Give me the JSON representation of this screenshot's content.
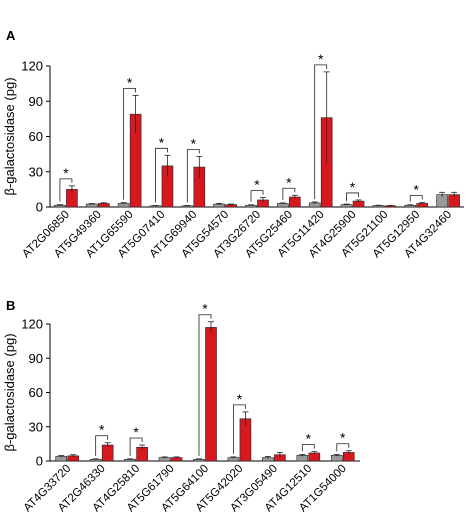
{
  "colors": {
    "control": "#9a9a9a",
    "treatment": "#d7191f",
    "axis": "#000000"
  },
  "chart_data": [
    {
      "panel_label": "A",
      "type": "bar",
      "ylabel": "β-galactosidase (pg)",
      "ylim": [
        0,
        120
      ],
      "yticks": [
        0,
        30,
        60,
        90,
        120
      ],
      "categories": [
        "AT2G06850",
        "AT5G49360",
        "AT1G65590",
        "AT5G07410",
        "AT1G69940",
        "AT5G54570",
        "AT3G26720",
        "AT5G25460",
        "AT5G11420",
        "AT4G25900",
        "AT5G21100",
        "AT5G12950",
        "AT4G32460"
      ],
      "series": [
        {
          "key": "control",
          "values": [
            1.5,
            2.5,
            3,
            1,
            1,
            2.5,
            1.5,
            3,
            3.5,
            2,
            1.2,
            1.5,
            10.5
          ],
          "errors": [
            0.5,
            0.5,
            0.7,
            0.3,
            0.3,
            0.6,
            0.4,
            0.5,
            0.8,
            0.5,
            0.3,
            0.4,
            2
          ]
        },
        {
          "key": "treatment",
          "values": [
            15,
            3,
            79,
            35,
            34,
            2,
            6,
            8.5,
            76,
            5,
            1,
            3,
            10.5
          ],
          "errors": [
            3,
            0.6,
            16,
            9,
            9,
            0.5,
            2,
            1.5,
            39,
            1,
            0.3,
            0.8,
            2
          ]
        }
      ],
      "significance": [
        "*",
        "",
        "*",
        "*",
        "*",
        "",
        "*",
        "*",
        "*",
        "*",
        "",
        "*",
        ""
      ]
    },
    {
      "panel_label": "B",
      "type": "bar",
      "ylabel": "β-galactosidase (pg)",
      "ylim": [
        0,
        120
      ],
      "yticks": [
        0,
        30,
        60,
        90,
        120
      ],
      "categories": [
        "AT4G33720",
        "AT2G46330",
        "AT4G25810",
        "AT5G61790",
        "AT5G64100",
        "AT5G42020",
        "AT3G05490",
        "AT4G12510",
        "AT1G54000"
      ],
      "series": [
        {
          "key": "control",
          "values": [
            4,
            1.5,
            1.5,
            3,
            1.5,
            3,
            3,
            5,
            5
          ],
          "errors": [
            0.8,
            0.4,
            0.4,
            0.6,
            0.4,
            0.6,
            1,
            0.8,
            0.8
          ]
        },
        {
          "key": "treatment",
          "values": [
            4.5,
            14,
            12,
            3,
            117,
            37,
            5.5,
            7,
            7.5
          ],
          "errors": [
            1,
            2,
            2,
            0.6,
            5,
            6,
            2,
            1.2,
            1.5
          ]
        }
      ],
      "significance": [
        "",
        "*",
        "*",
        "",
        "*",
        "*",
        "",
        "*",
        "*"
      ]
    }
  ]
}
